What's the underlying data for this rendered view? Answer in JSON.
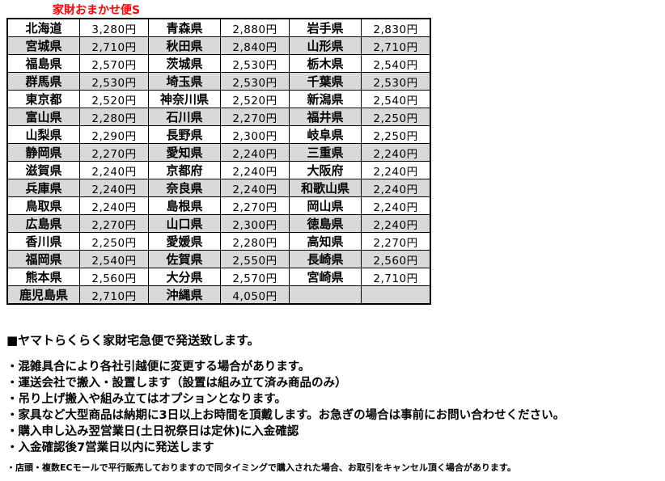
{
  "title": "家財おまかせ便S",
  "colors": {
    "title": "#ff0000",
    "row_stripe": "#d9d9d9",
    "grid": "#000000"
  },
  "table": {
    "rows": [
      {
        "cells": [
          "北海道",
          "3,280円",
          "青森県",
          "2,880円",
          "岩手県",
          "2,830円"
        ]
      },
      {
        "cells": [
          "宮城県",
          "2,710円",
          "秋田県",
          "2,840円",
          "山形県",
          "2,710円"
        ]
      },
      {
        "cells": [
          "福島県",
          "2,570円",
          "茨城県",
          "2,530円",
          "栃木県",
          "2,540円"
        ]
      },
      {
        "cells": [
          "群馬県",
          "2,530円",
          "埼玉県",
          "2,530円",
          "千葉県",
          "2,530円"
        ]
      },
      {
        "cells": [
          "東京都",
          "2,520円",
          "神奈川県",
          "2,520円",
          "新潟県",
          "2,540円"
        ]
      },
      {
        "cells": [
          "富山県",
          "2,280円",
          "石川県",
          "2,270円",
          "福井県",
          "2,250円"
        ]
      },
      {
        "cells": [
          "山梨県",
          "2,290円",
          "長野県",
          "2,300円",
          "岐阜県",
          "2,250円"
        ]
      },
      {
        "cells": [
          "静岡県",
          "2,270円",
          "愛知県",
          "2,240円",
          "三重県",
          "2,240円"
        ]
      },
      {
        "cells": [
          "滋賀県",
          "2,240円",
          "京都府",
          "2,240円",
          "大阪府",
          "2,240円"
        ]
      },
      {
        "cells": [
          "兵庫県",
          "2,240円",
          "奈良県",
          "2,240円",
          "和歌山県",
          "2,240円"
        ]
      },
      {
        "cells": [
          "鳥取県",
          "2,240円",
          "島根県",
          "2,270円",
          "岡山県",
          "2,240円"
        ]
      },
      {
        "cells": [
          "広島県",
          "2,270円",
          "山口県",
          "2,300円",
          "徳島県",
          "2,240円"
        ]
      },
      {
        "cells": [
          "香川県",
          "2,250円",
          "愛媛県",
          "2,280円",
          "高知県",
          "2,270円"
        ]
      },
      {
        "cells": [
          "福岡県",
          "2,540円",
          "佐賀県",
          "2,550円",
          "長崎県",
          "2,560円"
        ]
      },
      {
        "cells": [
          "熊本県",
          "2,560円",
          "大分県",
          "2,570円",
          "宮崎県",
          "2,710円"
        ]
      },
      {
        "cells": [
          "鹿児島県",
          "2,710円",
          "沖縄県",
          "4,050円",
          "",
          ""
        ]
      }
    ]
  },
  "notes": {
    "heading": "■ヤマトらくらく家財宅急便で発送致します。",
    "bullets": [
      "・混雑具合により各社引越便に変更する場合があります。",
      "・運送会社で搬入・設置します（設置は組み立て済み商品のみ）",
      "・吊り上げ搬入や組み立てはオプションとなります。",
      "・家具など大型商品は納期に3日以上お時間を頂戴します。お急ぎの場合は事前にお問い合わせください。",
      "・購入申し込み翌営業日(土日祝祭日は定休)に入金確認",
      "・入金確認後7営業日以内に発送します"
    ],
    "small_note": "・店頭・複数ECモールで平行販売しておりますので同タイミングで購入された場合、お取引をキャンセル頂く場合があります。"
  }
}
